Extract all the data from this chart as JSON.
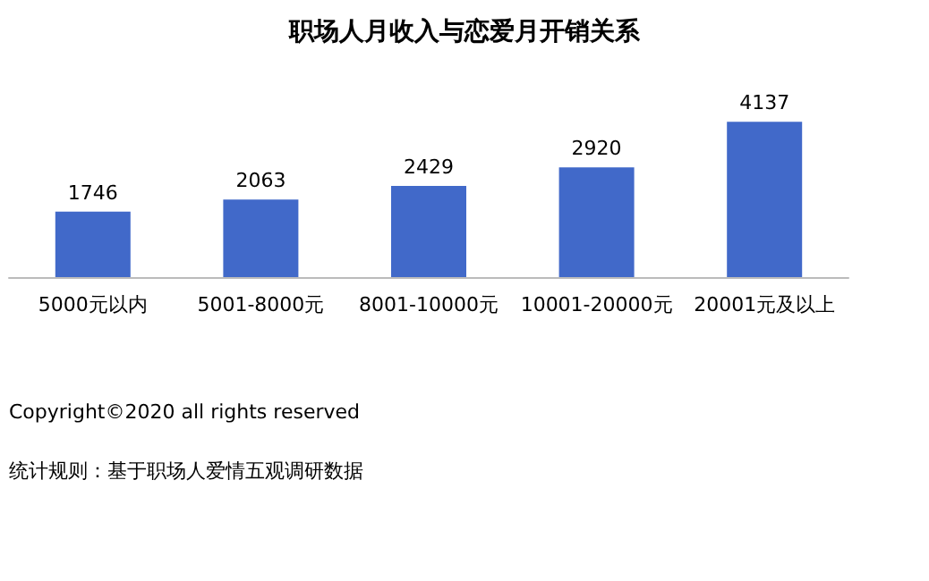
{
  "chart_data": {
    "type": "bar",
    "title": "职场人月收入与恋爱月开销关系",
    "categories": [
      "5000元以内",
      "5001-8000元",
      "8001-10000元",
      "10001-20000元",
      "20001元及以上"
    ],
    "values": [
      1746,
      2063,
      2429,
      2920,
      4137
    ],
    "color": "#4169c9",
    "data_labels": true,
    "annotations": [
      "Copyright©2020 all rights reserved",
      "统计规则：基于职场人爱情五观调研数据"
    ]
  }
}
